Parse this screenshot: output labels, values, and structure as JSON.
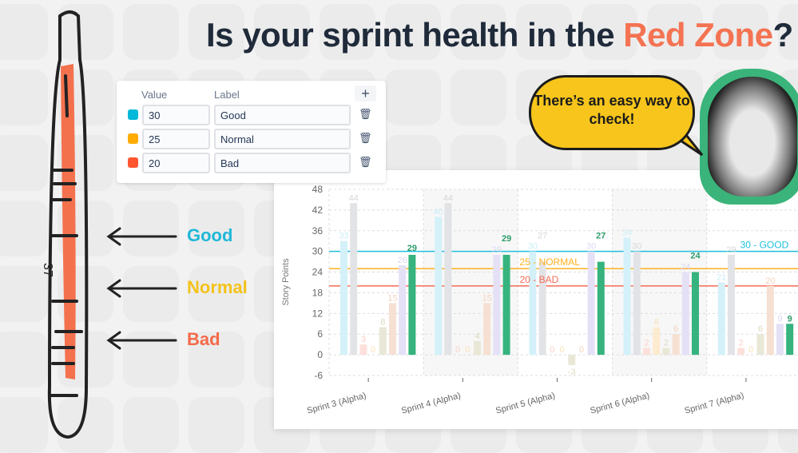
{
  "headline": {
    "prefix": "Is your sprint health in the ",
    "highlight": "Red Zone",
    "suffix": "?",
    "highlight_color": "#f47352"
  },
  "speech_bubble": "There’s an easy way to check!",
  "thermometer_labels": [
    {
      "label": "Good",
      "color": "#1fb8d8"
    },
    {
      "label": "Normal",
      "color": "#f4c21a"
    },
    {
      "label": "Bad",
      "color": "#f46a4a"
    }
  ],
  "thermometer_mark": "37",
  "thresholds_panel": {
    "value_header": "Value",
    "label_header": "Label",
    "add_icon": "plus-icon",
    "delete_icon": "trash-icon",
    "rows": [
      {
        "value": "30",
        "label": "Good",
        "color": "#00b8d9"
      },
      {
        "value": "25",
        "label": "Normal",
        "color": "#ffab00"
      },
      {
        "value": "20",
        "label": "Bad",
        "color": "#ff5630"
      }
    ]
  },
  "chart_data": {
    "type": "bar",
    "ylabel": "Story Points",
    "ylim": [
      -6,
      48
    ],
    "yticks": [
      -6,
      0,
      6,
      12,
      18,
      24,
      30,
      36,
      42,
      48
    ],
    "grid": true,
    "categories": [
      "Sprint 3 (Alpha)",
      "Sprint 4 (Alpha)",
      "Sprint 5 (Alpha)",
      "Sprint 6 (Alpha)",
      "Sprint 7 (Alpha)"
    ],
    "series": [
      {
        "color": "#d4f1f9",
        "label_color": "#c9eef8",
        "values": [
          33,
          40,
          30,
          34,
          21
        ]
      },
      {
        "color": "#e2e3e6",
        "label_color": "#d5d7db",
        "values": [
          44,
          44,
          27,
          30,
          29
        ]
      },
      {
        "color": "#fde0db",
        "label_color": "#fbcfc6",
        "values": [
          3,
          0,
          0,
          2,
          2
        ]
      },
      {
        "color": "#fdebd0",
        "label_color": "#fbe0bb",
        "values": [
          0,
          0,
          0,
          8,
          0
        ]
      },
      {
        "color": "#e9e7d6",
        "label_color": "#dcd9bf",
        "values": [
          8,
          4,
          -3,
          2,
          6
        ]
      },
      {
        "color": "#f6e0d2",
        "label_color": "#f5d2bd",
        "values": [
          15,
          15,
          0,
          6,
          20
        ]
      },
      {
        "color": "#e4e0f6",
        "label_color": "#dcd6f4",
        "values": [
          26,
          29,
          30,
          24,
          9
        ]
      },
      {
        "color": "#36b37e",
        "label_color": "#2e9e6c",
        "values": [
          29,
          29,
          27,
          24,
          9
        ]
      }
    ],
    "reference_lines": [
      {
        "value": 30,
        "label": "30 - GOOD",
        "color": "#1fbfdc"
      },
      {
        "value": 25,
        "label": "25 - NORMAL",
        "color": "#ffb01f"
      },
      {
        "value": 20,
        "label": "20 - BAD",
        "color": "#f66b55"
      }
    ]
  }
}
